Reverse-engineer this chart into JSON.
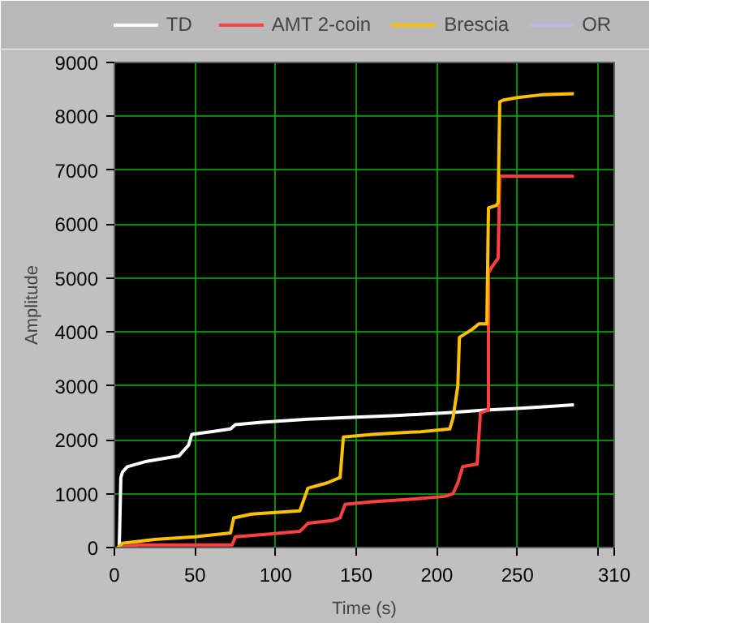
{
  "chart_data": {
    "type": "line",
    "xlabel": "Time (s)",
    "ylabel": "Amplitude",
    "xlim": [
      0,
      310
    ],
    "ylim": [
      0,
      9000
    ],
    "xticks": [
      0,
      50,
      100,
      150,
      200,
      250,
      {
        "value": 300,
        "label": null
      },
      310
    ],
    "yticks": [
      0,
      1000,
      2000,
      3000,
      4000,
      5000,
      6000,
      7000,
      8000,
      9000
    ],
    "grid": true,
    "legend": "top",
    "line_style": "solid",
    "marker": "none",
    "series": [
      {
        "name": "TD",
        "color": "#ffffff",
        "x": [
          3,
          4,
          5,
          8,
          20,
          40,
          46,
          48,
          60,
          72,
          75,
          90,
          120,
          150,
          175,
          205,
          230,
          250,
          270,
          285
        ],
        "values": [
          0,
          1300,
          1400,
          1500,
          1600,
          1700,
          1900,
          2100,
          2150,
          2200,
          2280,
          2320,
          2380,
          2420,
          2450,
          2500,
          2550,
          2580,
          2620,
          2650
        ]
      },
      {
        "name": "AMT 2-coin",
        "color": "#ff4040",
        "x": [
          2,
          15,
          73,
          75,
          95,
          115,
          120,
          135,
          140,
          143,
          160,
          185,
          205,
          210,
          213,
          216,
          225,
          227,
          232,
          232,
          234,
          238,
          239,
          285
        ],
        "values": [
          0,
          50,
          50,
          200,
          250,
          300,
          450,
          500,
          550,
          800,
          850,
          900,
          950,
          1000,
          1200,
          1500,
          1550,
          2500,
          2550,
          5100,
          5200,
          5370,
          6890,
          6890
        ]
      },
      {
        "name": "Brescia",
        "color": "#ffc000",
        "x": [
          2,
          5,
          25,
          50,
          72,
          74,
          85,
          115,
          120,
          132,
          140,
          142,
          160,
          190,
          208,
          210,
          213,
          214,
          222,
          226,
          231,
          232,
          237,
          238,
          239,
          241,
          250,
          265,
          285
        ],
        "values": [
          0,
          80,
          150,
          200,
          270,
          550,
          620,
          680,
          1100,
          1200,
          1300,
          2050,
          2100,
          2150,
          2200,
          2400,
          3000,
          3900,
          4050,
          4150,
          4150,
          6300,
          6350,
          6400,
          8270,
          8300,
          8350,
          8400,
          8420
        ]
      },
      {
        "name": "OR",
        "color": "#c8b4e8"
      }
    ]
  }
}
